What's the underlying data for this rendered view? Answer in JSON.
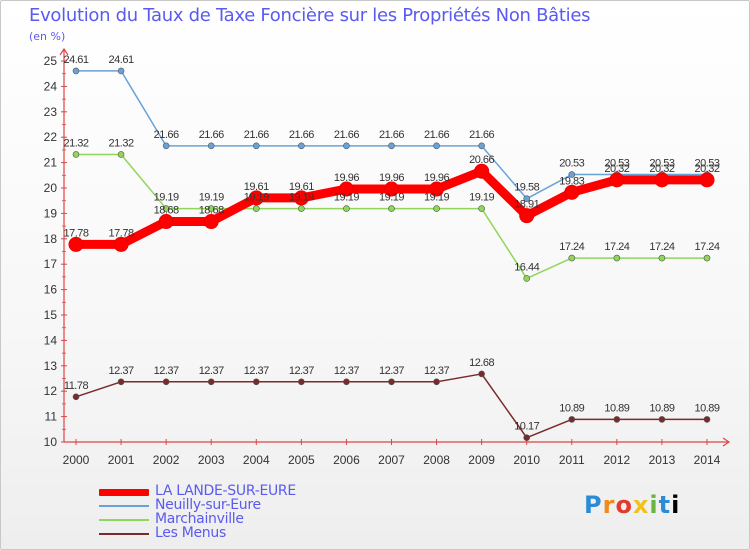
{
  "title": "Evolution du Taux de Taxe Foncière sur les Propriétés Non Bâties",
  "unit_label": "(en %)",
  "logo_text": "Proxiti",
  "chart_data": {
    "type": "line",
    "x": [
      "2000",
      "2001",
      "2002",
      "2003",
      "2004",
      "2005",
      "2006",
      "2007",
      "2008",
      "2009",
      "2010",
      "2011",
      "2012",
      "2013",
      "2014"
    ],
    "ylim": [
      10,
      25
    ],
    "yticks": [
      10,
      11,
      12,
      13,
      14,
      15,
      16,
      17,
      18,
      19,
      20,
      21,
      22,
      23,
      24,
      25
    ],
    "grid": false,
    "series": [
      {
        "name": "LA LANDE-SUR-EURE",
        "color": "#ff0000",
        "values": [
          17.78,
          17.78,
          18.68,
          18.68,
          19.61,
          19.61,
          19.96,
          19.96,
          19.96,
          20.66,
          18.91,
          19.83,
          20.32,
          20.32,
          20.32
        ],
        "labels": [
          "17.78",
          "17.78",
          "18.68",
          "18.68",
          "19.61",
          "19.61",
          "19.96",
          "19.96",
          "19.96",
          "20.66",
          "18.91",
          "19.83",
          "20.32",
          "20.32",
          "20.32"
        ]
      },
      {
        "name": "Neuilly-sur-Eure",
        "color": "#6aa2d8",
        "values": [
          24.61,
          24.61,
          21.66,
          21.66,
          21.66,
          21.66,
          21.66,
          21.66,
          21.66,
          21.66,
          19.58,
          20.53,
          20.53,
          20.53,
          20.53
        ],
        "labels": [
          "24.61",
          "24.61",
          "21.66",
          "21.66",
          "21.66",
          "21.66",
          "21.66",
          "21.66",
          "21.66",
          "21.66",
          "19.58",
          "20.53",
          "20.53",
          "20.53",
          "20.53"
        ]
      },
      {
        "name": "Marchainville",
        "color": "#8fd65a",
        "values": [
          21.32,
          21.32,
          19.19,
          19.19,
          19.19,
          19.19,
          19.19,
          19.19,
          19.19,
          19.19,
          16.44,
          17.24,
          17.24,
          17.24,
          17.24
        ],
        "labels": [
          "21.32",
          "21.32",
          "19.19",
          "19.19",
          "19.19",
          "19.19",
          "19.19",
          "19.19",
          "19.19",
          "19.19",
          "16.44",
          "17.24",
          "17.24",
          "17.24",
          "17.24"
        ]
      },
      {
        "name": "Les Menus",
        "color": "#7a2a2a",
        "values": [
          11.78,
          12.37,
          12.37,
          12.37,
          12.37,
          12.37,
          12.37,
          12.37,
          12.37,
          12.68,
          10.17,
          10.89,
          10.89,
          10.89,
          10.89
        ],
        "labels": [
          "11.78",
          "12.37",
          "12.37",
          "12.37",
          "12.37",
          "12.37",
          "12.37",
          "12.37",
          "12.37",
          "12.68",
          "10.17",
          "10.89",
          "10.89",
          "10.89",
          "10.89"
        ]
      }
    ]
  }
}
